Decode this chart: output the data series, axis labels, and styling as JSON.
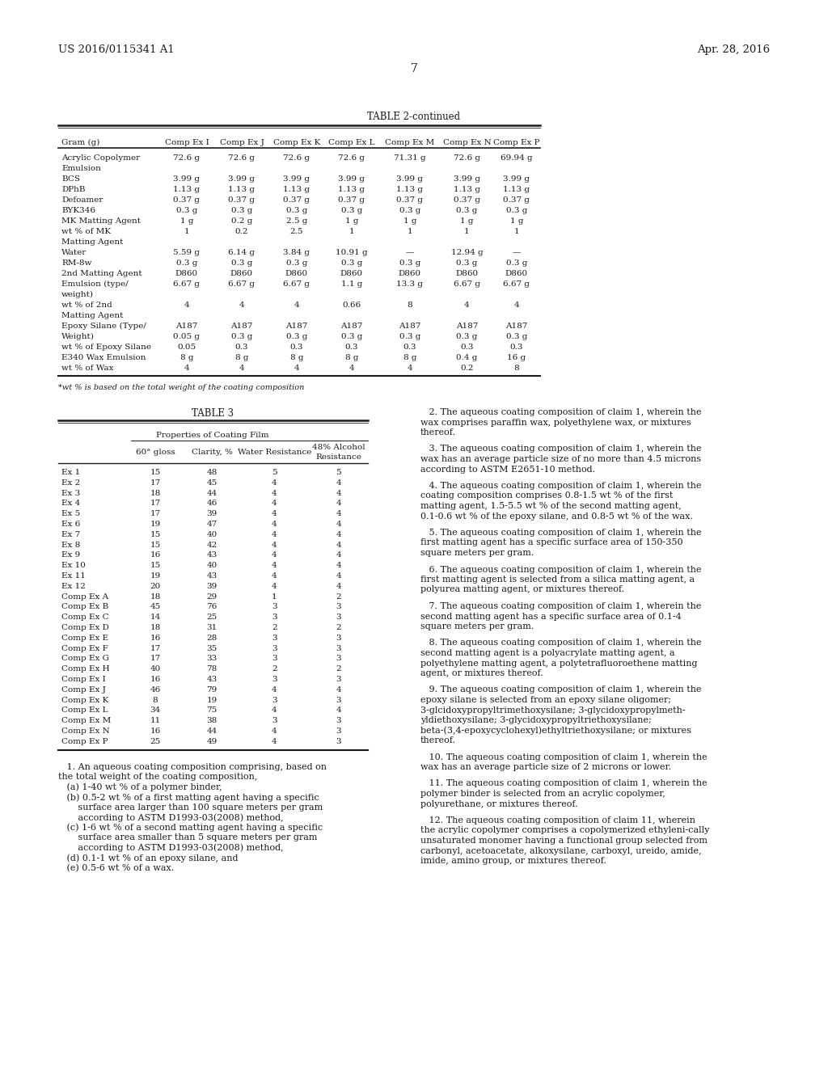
{
  "page_header_left": "US 2016/0115341 A1",
  "page_header_right": "Apr. 28, 2016",
  "page_number": "7",
  "table2_title": "TABLE 2-continued",
  "table2_headers": [
    "Gram (g)",
    "Comp Ex I",
    "Comp Ex J",
    "Comp Ex K",
    "Comp Ex L",
    "Comp Ex M",
    "Comp Ex N",
    "Comp Ex P"
  ],
  "table2_rows": [
    [
      "Acrylic Copolymer",
      "72.6 g",
      "72.6 g",
      "72.6 g",
      "72.6 g",
      "71.31 g",
      "72.6 g",
      "69.94 g"
    ],
    [
      "Emulsion",
      "",
      "",
      "",
      "",
      "",
      "",
      ""
    ],
    [
      "BCS",
      "3.99 g",
      "3.99 g",
      "3.99 g",
      "3.99 g",
      "3.99 g",
      "3.99 g",
      "3.99 g"
    ],
    [
      "DPhB",
      "1.13 g",
      "1.13 g",
      "1.13 g",
      "1.13 g",
      "1.13 g",
      "1.13 g",
      "1.13 g"
    ],
    [
      "Defoamer",
      "0.37 g",
      "0.37 g",
      "0.37 g",
      "0.37 g",
      "0.37 g",
      "0.37 g",
      "0.37 g"
    ],
    [
      "BYK346",
      "0.3 g",
      "0.3 g",
      "0.3 g",
      "0.3 g",
      "0.3 g",
      "0.3 g",
      "0.3 g"
    ],
    [
      "MK Matting Agent",
      "1 g",
      "0.2 g",
      "2.5 g",
      "1 g",
      "1 g",
      "1 g",
      "1 g"
    ],
    [
      "wt % of MK",
      "1",
      "0.2",
      "2.5",
      "1",
      "1",
      "1",
      "1"
    ],
    [
      "Matting Agent",
      "",
      "",
      "",
      "",
      "",
      "",
      ""
    ],
    [
      "Water",
      "5.59 g",
      "6.14 g",
      "3.84 g",
      "10.91 g",
      "—",
      "12.94 g",
      "—"
    ],
    [
      "RM-8w",
      "0.3 g",
      "0.3 g",
      "0.3 g",
      "0.3 g",
      "0.3 g",
      "0.3 g",
      "0.3 g"
    ],
    [
      "2nd Matting Agent",
      "D860",
      "D860",
      "D860",
      "D860",
      "D860",
      "D860",
      "D860"
    ],
    [
      "Emulsion (type/",
      "6.67 g",
      "6.67 g",
      "6.67 g",
      "1.1 g",
      "13.3 g",
      "6.67 g",
      "6.67 g"
    ],
    [
      "weight)",
      "",
      "",
      "",
      "",
      "",
      "",
      ""
    ],
    [
      "wt % of 2nd",
      "4",
      "4",
      "4",
      "0.66",
      "8",
      "4",
      "4"
    ],
    [
      "Matting Agent",
      "",
      "",
      "",
      "",
      "",
      "",
      ""
    ],
    [
      "Epoxy Silane (Type/",
      "A187",
      "A187",
      "A187",
      "A187",
      "A187",
      "A187",
      "A187"
    ],
    [
      "Weight)",
      "0.05 g",
      "0.3 g",
      "0.3 g",
      "0.3 g",
      "0.3 g",
      "0.3 g",
      "0.3 g"
    ],
    [
      "wt % of Epoxy Silane",
      "0.05",
      "0.3",
      "0.3",
      "0.3",
      "0.3",
      "0.3",
      "0.3"
    ],
    [
      "E340 Wax Emulsion",
      "8 g",
      "8 g",
      "8 g",
      "8 g",
      "8 g",
      "0.4 g",
      "16 g"
    ],
    [
      "wt % of Wax",
      "4",
      "4",
      "4",
      "4",
      "4",
      "0.2",
      "8"
    ]
  ],
  "table2_footnote": "*wt % is based on the total weight of the coating composition",
  "table3_title": "TABLE 3",
  "table3_subtitle": "Properties of Coating Film",
  "table3_col_headers": [
    "60° gloss",
    "Clarity, %",
    "Water Resistance",
    "48% Alcohol\nResistance"
  ],
  "table3_rows": [
    [
      "Ex 1",
      "15",
      "48",
      "5",
      "5"
    ],
    [
      "Ex 2",
      "17",
      "45",
      "4",
      "4"
    ],
    [
      "Ex 3",
      "18",
      "44",
      "4",
      "4"
    ],
    [
      "Ex 4",
      "17",
      "46",
      "4",
      "4"
    ],
    [
      "Ex 5",
      "17",
      "39",
      "4",
      "4"
    ],
    [
      "Ex 6",
      "19",
      "47",
      "4",
      "4"
    ],
    [
      "Ex 7",
      "15",
      "40",
      "4",
      "4"
    ],
    [
      "Ex 8",
      "15",
      "42",
      "4",
      "4"
    ],
    [
      "Ex 9",
      "16",
      "43",
      "4",
      "4"
    ],
    [
      "Ex 10",
      "15",
      "40",
      "4",
      "4"
    ],
    [
      "Ex 11",
      "19",
      "43",
      "4",
      "4"
    ],
    [
      "Ex 12",
      "20",
      "39",
      "4",
      "4"
    ],
    [
      "Comp Ex A",
      "18",
      "29",
      "1",
      "2"
    ],
    [
      "Comp Ex B",
      "45",
      "76",
      "3",
      "3"
    ],
    [
      "Comp Ex C",
      "14",
      "25",
      "3",
      "3"
    ],
    [
      "Comp Ex D",
      "18",
      "31",
      "2",
      "2"
    ],
    [
      "Comp Ex E",
      "16",
      "28",
      "3",
      "3"
    ],
    [
      "Comp Ex F",
      "17",
      "35",
      "3",
      "3"
    ],
    [
      "Comp Ex G",
      "17",
      "33",
      "3",
      "3"
    ],
    [
      "Comp Ex H",
      "40",
      "78",
      "2",
      "2"
    ],
    [
      "Comp Ex I",
      "16",
      "43",
      "3",
      "3"
    ],
    [
      "Comp Ex J",
      "46",
      "79",
      "4",
      "4"
    ],
    [
      "Comp Ex K",
      "8",
      "19",
      "3",
      "3"
    ],
    [
      "Comp Ex L",
      "34",
      "75",
      "4",
      "4"
    ],
    [
      "Comp Ex M",
      "11",
      "38",
      "3",
      "3"
    ],
    [
      "Comp Ex N",
      "16",
      "44",
      "4",
      "3"
    ],
    [
      "Comp Ex P",
      "25",
      "49",
      "4",
      "3"
    ]
  ],
  "background_color": "#ffffff"
}
